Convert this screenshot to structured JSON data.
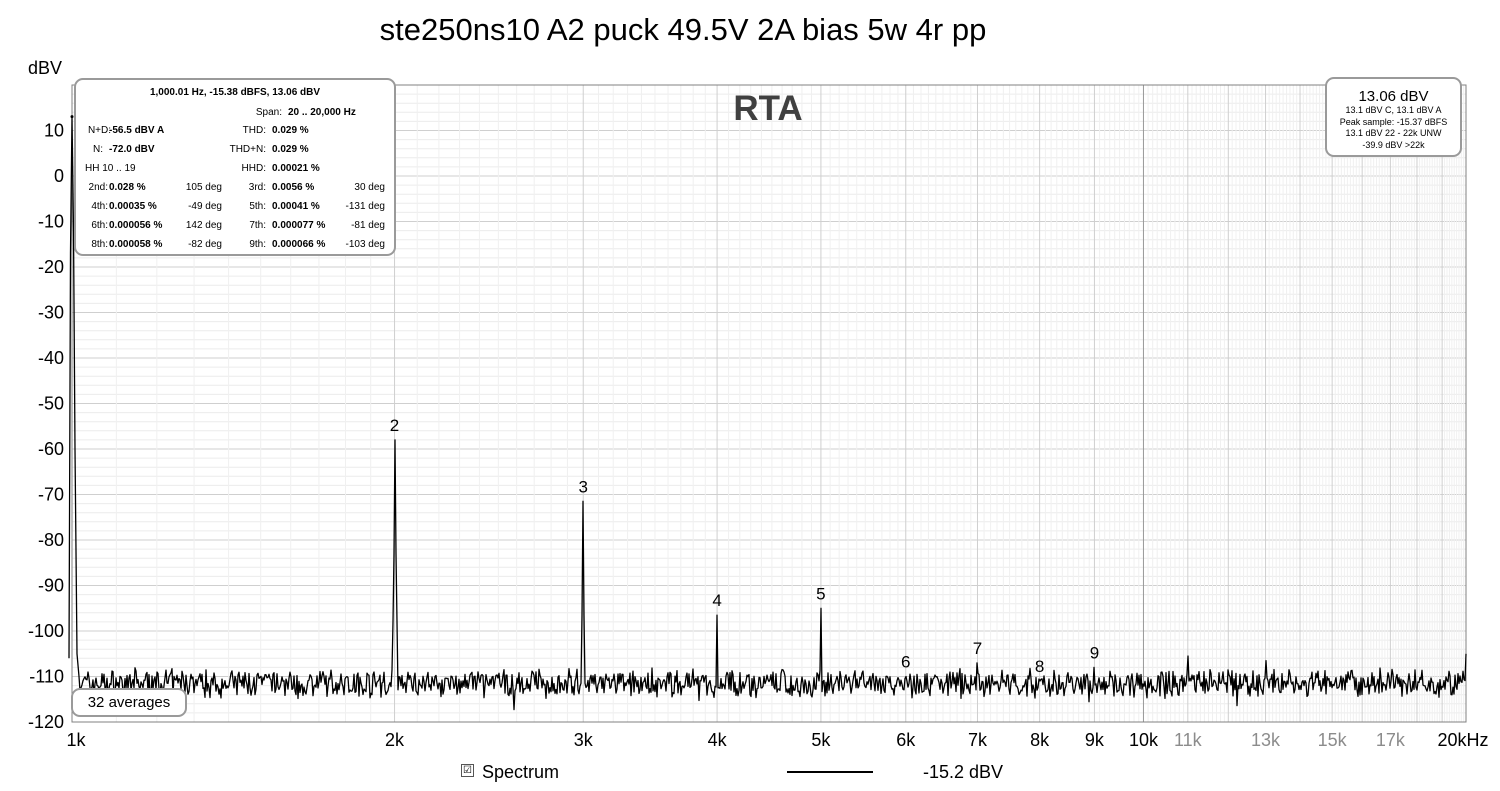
{
  "page": {
    "title": "ste250ns10 A2 puck 49.5V 2A bias 5w 4r pp"
  },
  "stats": {
    "header": "1,000.01 Hz, -15.38 dBFS, 13.06 dBV",
    "span_label": "Span:",
    "span_value": "20 .. 20,000 Hz",
    "nd_label": "N+D:",
    "nd_value": "-56.5 dBV A",
    "thd_label": "THD:",
    "thd_value": "0.029 %",
    "n_label": "N:",
    "n_value": "-72.0 dBV",
    "thdn_label": "THD+N:",
    "thdn_value": "0.029 %",
    "hh_label": "HH 10 .. 19",
    "hhd_label": "HHD:",
    "hhd_value": "0.00021 %",
    "harmonics": [
      {
        "l1": "2nd:",
        "v1": "0.028 %",
        "d1": "105 deg",
        "l2": "3rd:",
        "v2": "0.0056 %",
        "d2": "30 deg"
      },
      {
        "l1": "4th:",
        "v1": "0.00035 %",
        "d1": "-49 deg",
        "l2": "5th:",
        "v2": "0.00041 %",
        "d2": "-131 deg"
      },
      {
        "l1": "6th:",
        "v1": "0.000056 %",
        "d1": "142 deg",
        "l2": "7th:",
        "v2": "0.000077 %",
        "d2": "-81 deg"
      },
      {
        "l1": "8th:",
        "v1": "0.000058 %",
        "d1": "-82 deg",
        "l2": "9th:",
        "v2": "0.000066 %",
        "d2": "-103 deg"
      }
    ]
  },
  "level": {
    "main": "13.06 dBV",
    "line1": "13.1 dBV C, 13.1 dBV A",
    "line2": "Peak sample: -15.37 dBFS",
    "line3": "13.1 dBV 22 - 22k UNW",
    "line4": "-39.9 dBV >22k"
  },
  "averages": "32 averages",
  "legend": {
    "checkbox_mark": "☑",
    "name": "Spectrum",
    "value": "-15.2 dBV"
  },
  "chart_data": {
    "type": "line",
    "title": "ste250ns10 A2 puck 49.5V 2A bias 5w 4r pp",
    "watermark": "RTA",
    "ylabel": "dBV",
    "xlabel": "",
    "x_scale": "log",
    "xlim": [
      1000,
      20000
    ],
    "ylim": [
      -120,
      20
    ],
    "grid": true,
    "y_ticks": [
      10,
      0,
      -10,
      -20,
      -30,
      -40,
      -50,
      -60,
      -70,
      -80,
      -90,
      -100,
      -110,
      -120
    ],
    "x_tick_labels": [
      {
        "x": 1000,
        "label": "1k"
      },
      {
        "x": 2000,
        "label": "2k"
      },
      {
        "x": 3000,
        "label": "3k"
      },
      {
        "x": 4000,
        "label": "4k"
      },
      {
        "x": 5000,
        "label": "5k"
      },
      {
        "x": 6000,
        "label": "6k"
      },
      {
        "x": 7000,
        "label": "7k"
      },
      {
        "x": 8000,
        "label": "8k"
      },
      {
        "x": 9000,
        "label": "9k"
      },
      {
        "x": 10000,
        "label": "10k"
      },
      {
        "x": 11000,
        "label": "11k"
      },
      {
        "x": 13000,
        "label": "13k"
      },
      {
        "x": 15000,
        "label": "15k"
      },
      {
        "x": 17000,
        "label": "17k"
      },
      {
        "x": 20000,
        "label": "20kHz"
      }
    ],
    "noise_floor": -111.5,
    "fundamental": {
      "x": 1000,
      "y": 13.06
    },
    "harmonics": [
      {
        "label": "2",
        "x": 2000,
        "y": -58
      },
      {
        "label": "3",
        "x": 3000,
        "y": -71.5
      },
      {
        "label": "4",
        "x": 4000,
        "y": -96.5
      },
      {
        "label": "5",
        "x": 5000,
        "y": -95
      },
      {
        "label": "6",
        "x": 6000,
        "y": -110
      },
      {
        "label": "7",
        "x": 7000,
        "y": -107
      },
      {
        "label": "8",
        "x": 8000,
        "y": -111
      },
      {
        "label": "9",
        "x": 9000,
        "y": -108
      }
    ],
    "spurs": [
      {
        "x": 11000,
        "y": -105.5
      },
      {
        "x": 13000,
        "y": -106.5
      },
      {
        "x": 20000,
        "y": -105
      }
    ],
    "series": [
      {
        "name": "Spectrum"
      }
    ]
  }
}
